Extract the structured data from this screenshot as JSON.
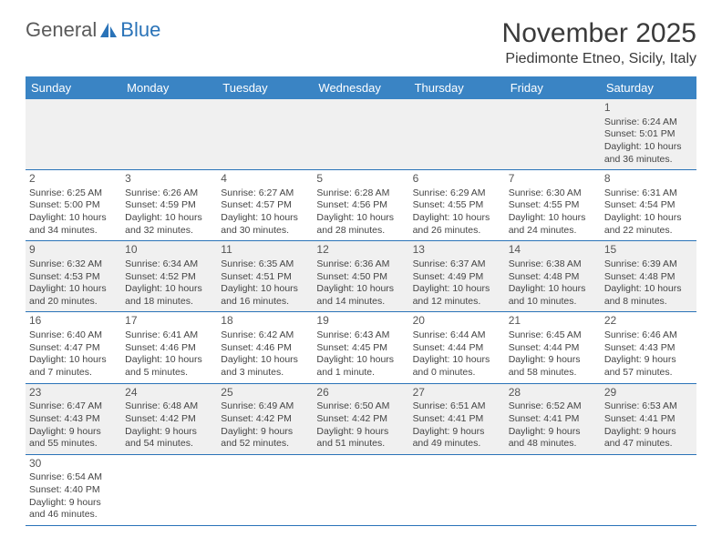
{
  "logo": {
    "text_general": "General",
    "text_blue": "Blue"
  },
  "title": "November 2025",
  "location": "Piedimonte Etneo, Sicily, Italy",
  "colors": {
    "header_bg": "#3a84c4",
    "border": "#2a73b8",
    "row_odd": "#f0f0f0",
    "row_even": "#ffffff"
  },
  "weekdays": [
    "Sunday",
    "Monday",
    "Tuesday",
    "Wednesday",
    "Thursday",
    "Friday",
    "Saturday"
  ],
  "weeks": [
    [
      null,
      null,
      null,
      null,
      null,
      null,
      {
        "n": "1",
        "sr": "Sunrise: 6:24 AM",
        "ss": "Sunset: 5:01 PM",
        "dl": "Daylight: 10 hours and 36 minutes."
      }
    ],
    [
      {
        "n": "2",
        "sr": "Sunrise: 6:25 AM",
        "ss": "Sunset: 5:00 PM",
        "dl": "Daylight: 10 hours and 34 minutes."
      },
      {
        "n": "3",
        "sr": "Sunrise: 6:26 AM",
        "ss": "Sunset: 4:59 PM",
        "dl": "Daylight: 10 hours and 32 minutes."
      },
      {
        "n": "4",
        "sr": "Sunrise: 6:27 AM",
        "ss": "Sunset: 4:57 PM",
        "dl": "Daylight: 10 hours and 30 minutes."
      },
      {
        "n": "5",
        "sr": "Sunrise: 6:28 AM",
        "ss": "Sunset: 4:56 PM",
        "dl": "Daylight: 10 hours and 28 minutes."
      },
      {
        "n": "6",
        "sr": "Sunrise: 6:29 AM",
        "ss": "Sunset: 4:55 PM",
        "dl": "Daylight: 10 hours and 26 minutes."
      },
      {
        "n": "7",
        "sr": "Sunrise: 6:30 AM",
        "ss": "Sunset: 4:55 PM",
        "dl": "Daylight: 10 hours and 24 minutes."
      },
      {
        "n": "8",
        "sr": "Sunrise: 6:31 AM",
        "ss": "Sunset: 4:54 PM",
        "dl": "Daylight: 10 hours and 22 minutes."
      }
    ],
    [
      {
        "n": "9",
        "sr": "Sunrise: 6:32 AM",
        "ss": "Sunset: 4:53 PM",
        "dl": "Daylight: 10 hours and 20 minutes."
      },
      {
        "n": "10",
        "sr": "Sunrise: 6:34 AM",
        "ss": "Sunset: 4:52 PM",
        "dl": "Daylight: 10 hours and 18 minutes."
      },
      {
        "n": "11",
        "sr": "Sunrise: 6:35 AM",
        "ss": "Sunset: 4:51 PM",
        "dl": "Daylight: 10 hours and 16 minutes."
      },
      {
        "n": "12",
        "sr": "Sunrise: 6:36 AM",
        "ss": "Sunset: 4:50 PM",
        "dl": "Daylight: 10 hours and 14 minutes."
      },
      {
        "n": "13",
        "sr": "Sunrise: 6:37 AM",
        "ss": "Sunset: 4:49 PM",
        "dl": "Daylight: 10 hours and 12 minutes."
      },
      {
        "n": "14",
        "sr": "Sunrise: 6:38 AM",
        "ss": "Sunset: 4:48 PM",
        "dl": "Daylight: 10 hours and 10 minutes."
      },
      {
        "n": "15",
        "sr": "Sunrise: 6:39 AM",
        "ss": "Sunset: 4:48 PM",
        "dl": "Daylight: 10 hours and 8 minutes."
      }
    ],
    [
      {
        "n": "16",
        "sr": "Sunrise: 6:40 AM",
        "ss": "Sunset: 4:47 PM",
        "dl": "Daylight: 10 hours and 7 minutes."
      },
      {
        "n": "17",
        "sr": "Sunrise: 6:41 AM",
        "ss": "Sunset: 4:46 PM",
        "dl": "Daylight: 10 hours and 5 minutes."
      },
      {
        "n": "18",
        "sr": "Sunrise: 6:42 AM",
        "ss": "Sunset: 4:46 PM",
        "dl": "Daylight: 10 hours and 3 minutes."
      },
      {
        "n": "19",
        "sr": "Sunrise: 6:43 AM",
        "ss": "Sunset: 4:45 PM",
        "dl": "Daylight: 10 hours and 1 minute."
      },
      {
        "n": "20",
        "sr": "Sunrise: 6:44 AM",
        "ss": "Sunset: 4:44 PM",
        "dl": "Daylight: 10 hours and 0 minutes."
      },
      {
        "n": "21",
        "sr": "Sunrise: 6:45 AM",
        "ss": "Sunset: 4:44 PM",
        "dl": "Daylight: 9 hours and 58 minutes."
      },
      {
        "n": "22",
        "sr": "Sunrise: 6:46 AM",
        "ss": "Sunset: 4:43 PM",
        "dl": "Daylight: 9 hours and 57 minutes."
      }
    ],
    [
      {
        "n": "23",
        "sr": "Sunrise: 6:47 AM",
        "ss": "Sunset: 4:43 PM",
        "dl": "Daylight: 9 hours and 55 minutes."
      },
      {
        "n": "24",
        "sr": "Sunrise: 6:48 AM",
        "ss": "Sunset: 4:42 PM",
        "dl": "Daylight: 9 hours and 54 minutes."
      },
      {
        "n": "25",
        "sr": "Sunrise: 6:49 AM",
        "ss": "Sunset: 4:42 PM",
        "dl": "Daylight: 9 hours and 52 minutes."
      },
      {
        "n": "26",
        "sr": "Sunrise: 6:50 AM",
        "ss": "Sunset: 4:42 PM",
        "dl": "Daylight: 9 hours and 51 minutes."
      },
      {
        "n": "27",
        "sr": "Sunrise: 6:51 AM",
        "ss": "Sunset: 4:41 PM",
        "dl": "Daylight: 9 hours and 49 minutes."
      },
      {
        "n": "28",
        "sr": "Sunrise: 6:52 AM",
        "ss": "Sunset: 4:41 PM",
        "dl": "Daylight: 9 hours and 48 minutes."
      },
      {
        "n": "29",
        "sr": "Sunrise: 6:53 AM",
        "ss": "Sunset: 4:41 PM",
        "dl": "Daylight: 9 hours and 47 minutes."
      }
    ],
    [
      {
        "n": "30",
        "sr": "Sunrise: 6:54 AM",
        "ss": "Sunset: 4:40 PM",
        "dl": "Daylight: 9 hours and 46 minutes."
      },
      null,
      null,
      null,
      null,
      null,
      null
    ]
  ]
}
